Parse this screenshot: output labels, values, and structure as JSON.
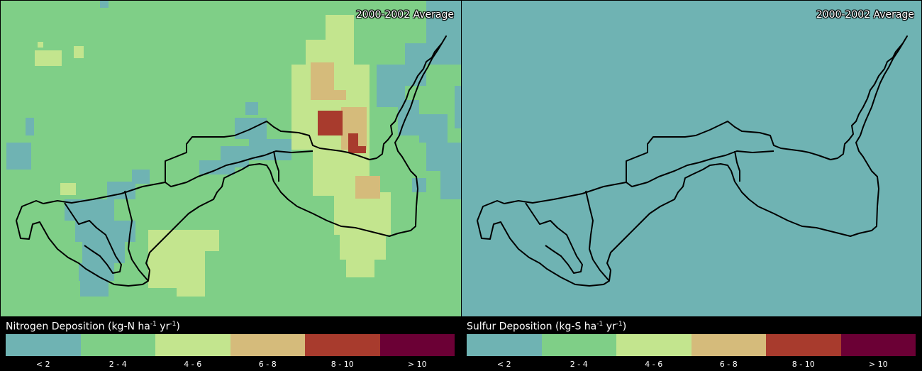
{
  "panels": [
    {
      "id": "nitrogen",
      "period_label": "2000-2002 Average",
      "legend_title": "Nitrogen Deposition (kg-N ha",
      "legend_exp1": "-1",
      "legend_mid": " yr",
      "legend_exp2": "-1",
      "legend_close": ")",
      "base_color": "#7fcf87"
    },
    {
      "id": "sulfur",
      "period_label": "2000-2002 Average",
      "legend_title": "Sulfur Deposition (kg-S ha",
      "legend_exp1": "-1",
      "legend_mid": " yr",
      "legend_exp2": "-1",
      "legend_close": ")",
      "base_color": "#6fb3b3"
    }
  ],
  "legend": {
    "classes": [
      {
        "label": "< 2",
        "color": "#6fb3b3"
      },
      {
        "label": "2 - 4",
        "color": "#7fcf87"
      },
      {
        "label": "4 - 6",
        "color": "#c3e58e"
      },
      {
        "label": "6 - 8",
        "color": "#d5bb7b"
      },
      {
        "label": "8 - 10",
        "color": "#a83b2d"
      },
      {
        "label": "> 10",
        "color": "#6b0035"
      }
    ]
  },
  "map_colors": {
    "lt2": "#6fb3b3",
    "c2_4": "#7fcf87",
    "c4_6": "#c3e58e",
    "c6_8": "#d5bb7b",
    "c8_10": "#a83b2d",
    "boundary": "#000000"
  }
}
